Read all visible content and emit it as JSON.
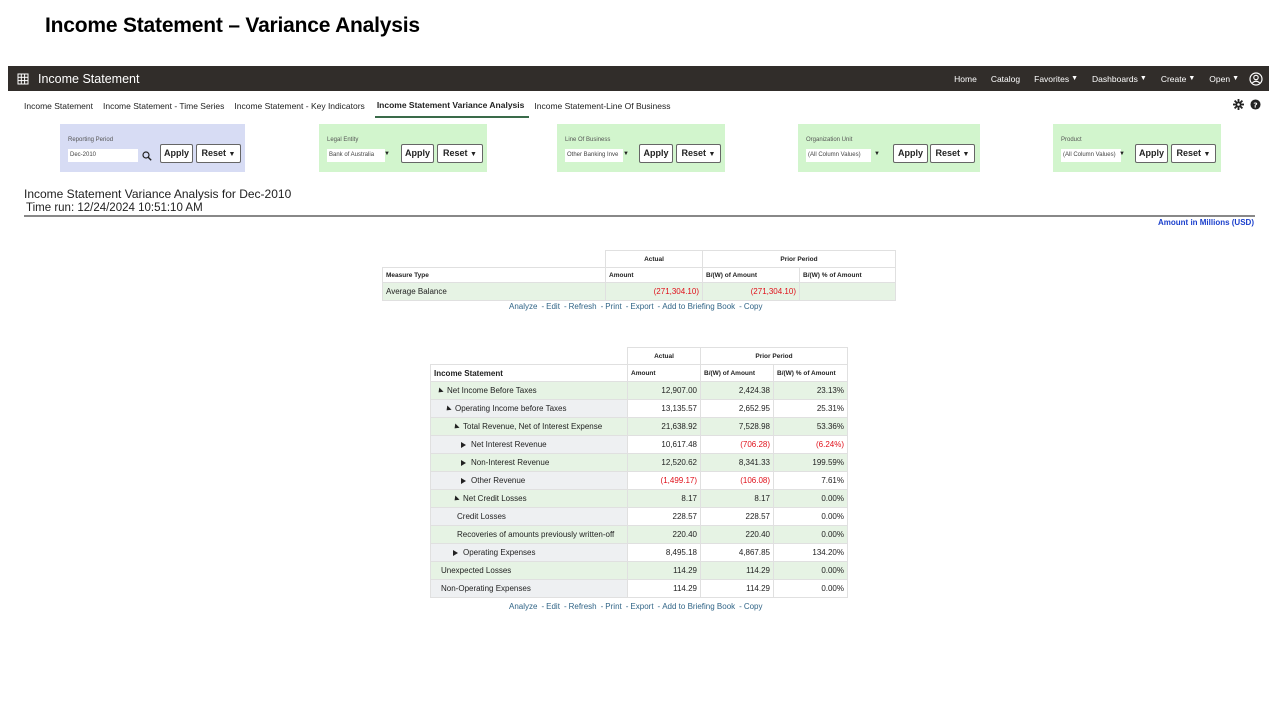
{
  "slide": {
    "title": "Income Statement – Variance Analysis"
  },
  "topbar": {
    "app_title": "Income Statement",
    "nav": [
      "Home",
      "Catalog",
      "Favorites",
      "Dashboards",
      "Create",
      "Open"
    ],
    "icons": {
      "apps": "grid-icon",
      "user": "user-icon"
    }
  },
  "tabs": [
    "Income Statement",
    "Income Statement - Time Series",
    "Income Statement - Key Indicators",
    "Income Statement Variance Analysis",
    "Income Statement-Line Of Business"
  ],
  "active_tab": "Income Statement Variance Analysis",
  "prompts": {
    "reporting_period": {
      "label": "Reporting Period",
      "value": "Dec-2010"
    },
    "legal_entity": {
      "label": "Legal Entity",
      "value": "Bank of Australia"
    },
    "line_of_business": {
      "label": "Line Of Business",
      "value": "Other Banking Inve"
    },
    "organization_unit": {
      "label": "Organization Unit",
      "value": "(All Column Values)"
    },
    "product": {
      "label": "Product",
      "value": "(All Column Values)"
    },
    "apply_label": "Apply",
    "reset_label": "Reset"
  },
  "report": {
    "title": "Income Statement Variance Analysis for Dec-2010",
    "time_run": "Time run: 12/24/2024 10:51:10 AM",
    "units": "Amount in Millions (USD)"
  },
  "table1": {
    "group_headers": {
      "actual": "Actual",
      "prior": "Prior Period"
    },
    "col_headers": [
      "Measure Type",
      "Amount",
      "B/(W) of Amount",
      "B/(W) % of Amount"
    ],
    "rows": [
      {
        "label": "Average Balance",
        "amount": "(271,304.10)",
        "bw": "(271,304.10)",
        "pct": ""
      }
    ]
  },
  "table2": {
    "group_headers": {
      "actual": "Actual",
      "prior": "Prior Period"
    },
    "col_headers": [
      "Income Statement",
      "Amount",
      "B/(W) of Amount",
      "B/(W) % of Amount"
    ],
    "rows": [
      {
        "label": "Net Income Before Taxes",
        "amount": "12,907.00",
        "bw": "2,424.38",
        "pct": "23.13%"
      },
      {
        "label": "Operating Income before Taxes",
        "amount": "13,135.57",
        "bw": "2,652.95",
        "pct": "25.31%"
      },
      {
        "label": "Total Revenue, Net of Interest Expense",
        "amount": "21,638.92",
        "bw": "7,528.98",
        "pct": "53.36%"
      },
      {
        "label": "Net Interest Revenue",
        "amount": "10,617.48",
        "bw": "(706.28)",
        "pct": "(6.24%)"
      },
      {
        "label": "Non-Interest Revenue",
        "amount": "12,520.62",
        "bw": "8,341.33",
        "pct": "199.59%"
      },
      {
        "label": "Other Revenue",
        "amount": "(1,499.17)",
        "bw": "(106.08)",
        "pct": "7.61%"
      },
      {
        "label": "Net Credit Losses",
        "amount": "8.17",
        "bw": "8.17",
        "pct": "0.00%"
      },
      {
        "label": "Credit Losses",
        "amount": "228.57",
        "bw": "228.57",
        "pct": "0.00%"
      },
      {
        "label": "Recoveries of amounts previously written-off",
        "amount": "220.40",
        "bw": "220.40",
        "pct": "0.00%"
      },
      {
        "label": "Operating Expenses",
        "amount": "8,495.18",
        "bw": "4,867.85",
        "pct": "134.20%"
      },
      {
        "label": "Unexpected Losses",
        "amount": "114.29",
        "bw": "114.29",
        "pct": "0.00%"
      },
      {
        "label": "Non-Operating Expenses",
        "amount": "114.29",
        "bw": "114.29",
        "pct": "0.00%"
      }
    ]
  },
  "links": [
    "Analyze",
    "Edit",
    "Refresh",
    "Print",
    "Export",
    "Add to Briefing Book",
    "Copy"
  ]
}
